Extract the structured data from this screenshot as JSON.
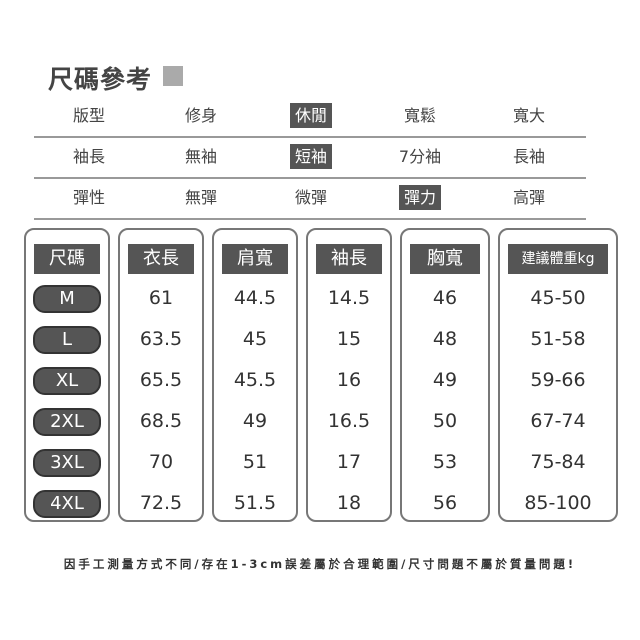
{
  "title": "尺碼參考",
  "attributes": [
    {
      "label": "版型",
      "options": [
        "修身",
        "休閒",
        "寬鬆",
        "寬大"
      ],
      "selected": 1
    },
    {
      "label": "袖長",
      "options": [
        "無袖",
        "短袖",
        "7分袖",
        "長袖"
      ],
      "selected": 1
    },
    {
      "label": "彈性",
      "options": [
        "無彈",
        "微彈",
        "彈力",
        "高彈"
      ],
      "selected": 2
    }
  ],
  "table": {
    "headers": [
      "尺碼",
      "衣長",
      "肩寬",
      "袖長",
      "胸寬",
      "建議體重kg"
    ],
    "rows": [
      [
        "M",
        "61",
        "44.5",
        "14.5",
        "46",
        "45-50"
      ],
      [
        "L",
        "63.5",
        "45",
        "15",
        "48",
        "51-58"
      ],
      [
        "XL",
        "65.5",
        "45.5",
        "16",
        "49",
        "59-66"
      ],
      [
        "2XL",
        "68.5",
        "49",
        "16.5",
        "50",
        "67-74"
      ],
      [
        "3XL",
        "70",
        "51",
        "17",
        "53",
        "75-84"
      ],
      [
        "4XL",
        "72.5",
        "51.5",
        "18",
        "56",
        "85-100"
      ]
    ]
  },
  "note": "因手工測量方式不同/存在1-3cm誤差屬於合理範圍/尺寸問題不屬於質量問題!"
}
